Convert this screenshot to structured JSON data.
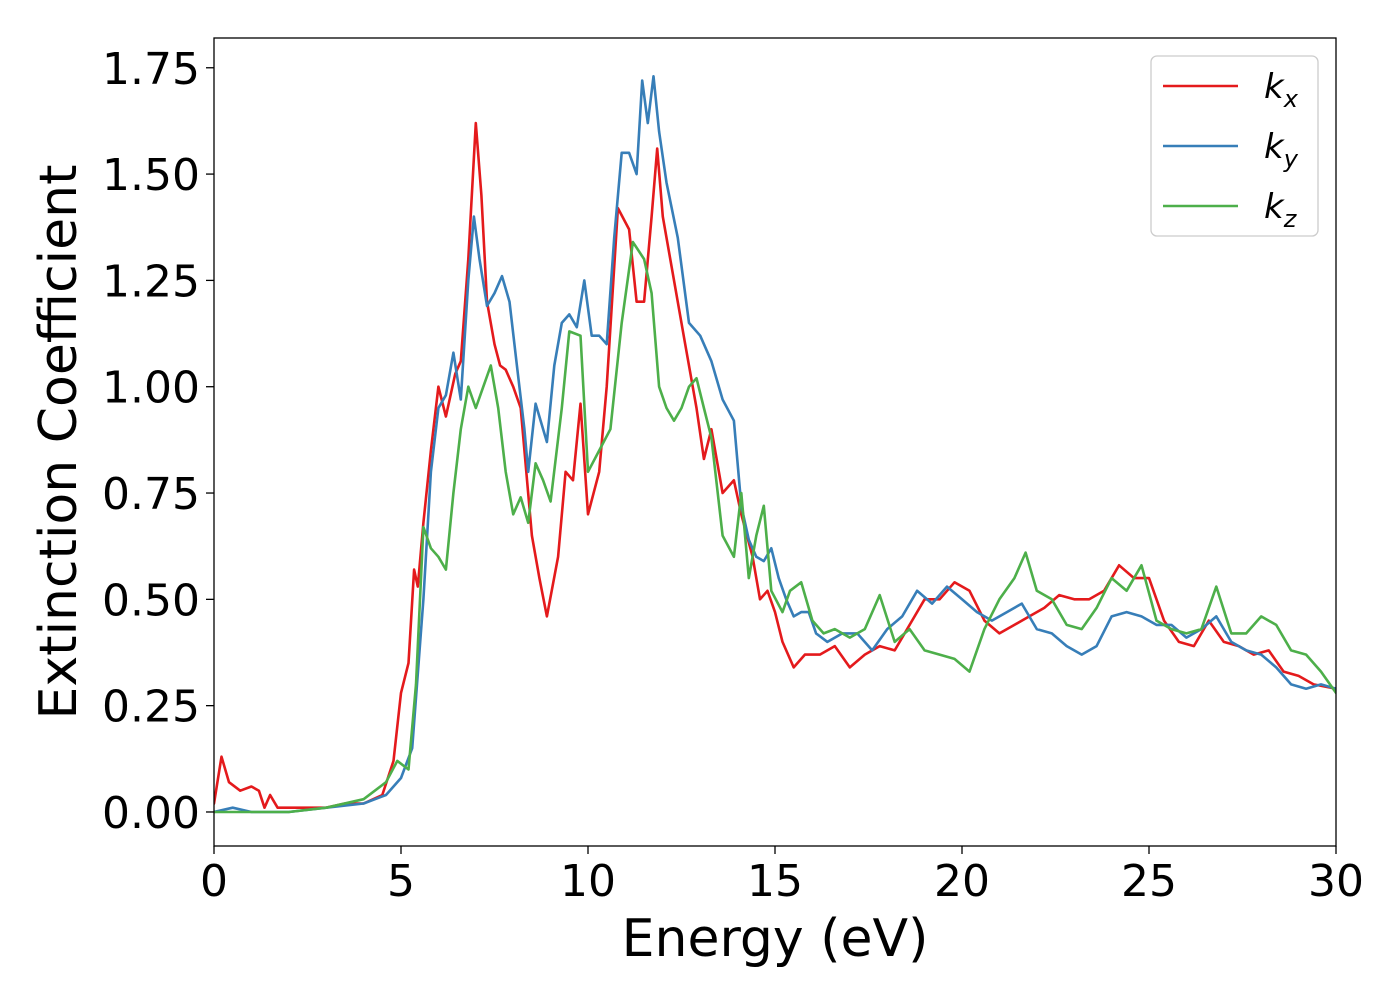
{
  "chart_data": {
    "type": "line",
    "title": "",
    "xlabel": "Energy (eV)",
    "ylabel": "Extinction Coefficient",
    "xlim": [
      0,
      30
    ],
    "ylim": [
      -0.08,
      1.82
    ],
    "xticks": [
      0,
      5,
      10,
      15,
      20,
      25,
      30
    ],
    "xtick_labels": [
      "0",
      "5",
      "10",
      "15",
      "20",
      "25",
      "30"
    ],
    "yticks": [
      0.0,
      0.25,
      0.5,
      0.75,
      1.0,
      1.25,
      1.5,
      1.75
    ],
    "ytick_labels": [
      "0.00",
      "0.25",
      "0.50",
      "0.75",
      "1.00",
      "1.25",
      "1.50",
      "1.75"
    ],
    "grid": false,
    "legend_position": "top-right",
    "series": [
      {
        "name": "k_x",
        "label_base": "k",
        "label_sub": "x",
        "color": "#e41a1c",
        "points": [
          [
            0,
            0.02
          ],
          [
            0.2,
            0.13
          ],
          [
            0.4,
            0.07
          ],
          [
            0.7,
            0.05
          ],
          [
            1.0,
            0.06
          ],
          [
            1.2,
            0.05
          ],
          [
            1.35,
            0.01
          ],
          [
            1.5,
            0.04
          ],
          [
            1.7,
            0.01
          ],
          [
            2,
            0.01
          ],
          [
            3,
            0.01
          ],
          [
            3.5,
            0.02
          ],
          [
            4,
            0.02
          ],
          [
            4.5,
            0.04
          ],
          [
            4.8,
            0.12
          ],
          [
            5.0,
            0.28
          ],
          [
            5.2,
            0.35
          ],
          [
            5.35,
            0.57
          ],
          [
            5.45,
            0.53
          ],
          [
            5.6,
            0.68
          ],
          [
            5.8,
            0.85
          ],
          [
            6.0,
            1.0
          ],
          [
            6.2,
            0.93
          ],
          [
            6.45,
            1.03
          ],
          [
            6.6,
            1.06
          ],
          [
            6.8,
            1.3
          ],
          [
            7.0,
            1.62
          ],
          [
            7.15,
            1.45
          ],
          [
            7.3,
            1.2
          ],
          [
            7.5,
            1.1
          ],
          [
            7.65,
            1.05
          ],
          [
            7.8,
            1.04
          ],
          [
            8.0,
            1.0
          ],
          [
            8.2,
            0.95
          ],
          [
            8.5,
            0.65
          ],
          [
            8.7,
            0.55
          ],
          [
            8.9,
            0.46
          ],
          [
            9.2,
            0.6
          ],
          [
            9.4,
            0.8
          ],
          [
            9.6,
            0.78
          ],
          [
            9.8,
            0.96
          ],
          [
            10.0,
            0.7
          ],
          [
            10.3,
            0.8
          ],
          [
            10.5,
            1.0
          ],
          [
            10.8,
            1.42
          ],
          [
            11.1,
            1.37
          ],
          [
            11.3,
            1.2
          ],
          [
            11.5,
            1.2
          ],
          [
            11.7,
            1.4
          ],
          [
            11.85,
            1.56
          ],
          [
            12.0,
            1.4
          ],
          [
            12.3,
            1.25
          ],
          [
            12.6,
            1.1
          ],
          [
            12.9,
            0.95
          ],
          [
            13.1,
            0.83
          ],
          [
            13.3,
            0.9
          ],
          [
            13.6,
            0.75
          ],
          [
            13.9,
            0.78
          ],
          [
            14.1,
            0.7
          ],
          [
            14.4,
            0.6
          ],
          [
            14.6,
            0.5
          ],
          [
            14.8,
            0.52
          ],
          [
            15.0,
            0.47
          ],
          [
            15.2,
            0.4
          ],
          [
            15.5,
            0.34
          ],
          [
            15.8,
            0.37
          ],
          [
            16.2,
            0.37
          ],
          [
            16.6,
            0.39
          ],
          [
            17.0,
            0.34
          ],
          [
            17.4,
            0.37
          ],
          [
            17.8,
            0.39
          ],
          [
            18.2,
            0.38
          ],
          [
            18.6,
            0.44
          ],
          [
            19.0,
            0.5
          ],
          [
            19.4,
            0.5
          ],
          [
            19.8,
            0.54
          ],
          [
            20.2,
            0.52
          ],
          [
            20.6,
            0.45
          ],
          [
            21.0,
            0.42
          ],
          [
            21.4,
            0.44
          ],
          [
            21.8,
            0.46
          ],
          [
            22.2,
            0.48
          ],
          [
            22.6,
            0.51
          ],
          [
            23.0,
            0.5
          ],
          [
            23.4,
            0.5
          ],
          [
            23.8,
            0.52
          ],
          [
            24.2,
            0.58
          ],
          [
            24.6,
            0.55
          ],
          [
            25.0,
            0.55
          ],
          [
            25.4,
            0.45
          ],
          [
            25.8,
            0.4
          ],
          [
            26.2,
            0.39
          ],
          [
            26.6,
            0.45
          ],
          [
            27.0,
            0.4
          ],
          [
            27.4,
            0.39
          ],
          [
            27.8,
            0.37
          ],
          [
            28.2,
            0.38
          ],
          [
            28.6,
            0.33
          ],
          [
            29.0,
            0.32
          ],
          [
            29.4,
            0.3
          ],
          [
            30.0,
            0.29
          ]
        ]
      },
      {
        "name": "k_y",
        "label_base": "k",
        "label_sub": "y",
        "color": "#377eb8",
        "points": [
          [
            0,
            0.0
          ],
          [
            0.5,
            0.01
          ],
          [
            1,
            0.0
          ],
          [
            2,
            0.0
          ],
          [
            3,
            0.01
          ],
          [
            4,
            0.02
          ],
          [
            4.6,
            0.04
          ],
          [
            5.0,
            0.08
          ],
          [
            5.3,
            0.15
          ],
          [
            5.6,
            0.5
          ],
          [
            5.8,
            0.8
          ],
          [
            6.0,
            0.95
          ],
          [
            6.2,
            0.98
          ],
          [
            6.4,
            1.08
          ],
          [
            6.6,
            0.97
          ],
          [
            6.8,
            1.25
          ],
          [
            6.95,
            1.4
          ],
          [
            7.1,
            1.3
          ],
          [
            7.3,
            1.19
          ],
          [
            7.5,
            1.22
          ],
          [
            7.7,
            1.26
          ],
          [
            7.9,
            1.2
          ],
          [
            8.1,
            1.05
          ],
          [
            8.3,
            0.9
          ],
          [
            8.4,
            0.8
          ],
          [
            8.6,
            0.96
          ],
          [
            8.9,
            0.87
          ],
          [
            9.1,
            1.05
          ],
          [
            9.3,
            1.15
          ],
          [
            9.5,
            1.17
          ],
          [
            9.7,
            1.14
          ],
          [
            9.9,
            1.25
          ],
          [
            10.1,
            1.12
          ],
          [
            10.3,
            1.12
          ],
          [
            10.5,
            1.1
          ],
          [
            10.7,
            1.35
          ],
          [
            10.9,
            1.55
          ],
          [
            11.1,
            1.55
          ],
          [
            11.3,
            1.5
          ],
          [
            11.45,
            1.72
          ],
          [
            11.6,
            1.62
          ],
          [
            11.75,
            1.73
          ],
          [
            11.9,
            1.6
          ],
          [
            12.1,
            1.48
          ],
          [
            12.4,
            1.35
          ],
          [
            12.7,
            1.15
          ],
          [
            13.0,
            1.12
          ],
          [
            13.3,
            1.06
          ],
          [
            13.6,
            0.97
          ],
          [
            13.9,
            0.92
          ],
          [
            14.1,
            0.72
          ],
          [
            14.3,
            0.64
          ],
          [
            14.5,
            0.6
          ],
          [
            14.7,
            0.59
          ],
          [
            14.9,
            0.62
          ],
          [
            15.1,
            0.55
          ],
          [
            15.3,
            0.5
          ],
          [
            15.5,
            0.46
          ],
          [
            15.7,
            0.47
          ],
          [
            15.9,
            0.47
          ],
          [
            16.1,
            0.42
          ],
          [
            16.4,
            0.4
          ],
          [
            16.8,
            0.42
          ],
          [
            17.2,
            0.42
          ],
          [
            17.6,
            0.38
          ],
          [
            18.0,
            0.43
          ],
          [
            18.4,
            0.46
          ],
          [
            18.8,
            0.52
          ],
          [
            19.2,
            0.49
          ],
          [
            19.6,
            0.53
          ],
          [
            20.0,
            0.5
          ],
          [
            20.4,
            0.47
          ],
          [
            20.8,
            0.45
          ],
          [
            21.2,
            0.47
          ],
          [
            21.6,
            0.49
          ],
          [
            22.0,
            0.43
          ],
          [
            22.4,
            0.42
          ],
          [
            22.8,
            0.39
          ],
          [
            23.2,
            0.37
          ],
          [
            23.6,
            0.39
          ],
          [
            24.0,
            0.46
          ],
          [
            24.4,
            0.47
          ],
          [
            24.8,
            0.46
          ],
          [
            25.2,
            0.44
          ],
          [
            25.6,
            0.44
          ],
          [
            26.0,
            0.41
          ],
          [
            26.4,
            0.43
          ],
          [
            26.8,
            0.46
          ],
          [
            27.2,
            0.4
          ],
          [
            27.6,
            0.38
          ],
          [
            28.0,
            0.37
          ],
          [
            28.4,
            0.34
          ],
          [
            28.8,
            0.3
          ],
          [
            29.2,
            0.29
          ],
          [
            29.6,
            0.3
          ],
          [
            30.0,
            0.29
          ]
        ]
      },
      {
        "name": "k_z",
        "label_base": "k",
        "label_sub": "z",
        "color": "#4daf4a",
        "points": [
          [
            0,
            0.0
          ],
          [
            0.5,
            0.0
          ],
          [
            1,
            0.0
          ],
          [
            2,
            0.0
          ],
          [
            3,
            0.01
          ],
          [
            4,
            0.03
          ],
          [
            4.6,
            0.07
          ],
          [
            4.9,
            0.12
          ],
          [
            5.2,
            0.1
          ],
          [
            5.4,
            0.3
          ],
          [
            5.6,
            0.67
          ],
          [
            5.8,
            0.62
          ],
          [
            6.0,
            0.6
          ],
          [
            6.2,
            0.57
          ],
          [
            6.4,
            0.75
          ],
          [
            6.6,
            0.9
          ],
          [
            6.8,
            1.0
          ],
          [
            7.0,
            0.95
          ],
          [
            7.2,
            1.0
          ],
          [
            7.4,
            1.05
          ],
          [
            7.6,
            0.95
          ],
          [
            7.8,
            0.8
          ],
          [
            8.0,
            0.7
          ],
          [
            8.2,
            0.74
          ],
          [
            8.4,
            0.68
          ],
          [
            8.6,
            0.82
          ],
          [
            8.8,
            0.78
          ],
          [
            9.0,
            0.73
          ],
          [
            9.3,
            0.95
          ],
          [
            9.5,
            1.13
          ],
          [
            9.8,
            1.12
          ],
          [
            10.0,
            0.8
          ],
          [
            10.3,
            0.85
          ],
          [
            10.6,
            0.9
          ],
          [
            10.9,
            1.15
          ],
          [
            11.2,
            1.34
          ],
          [
            11.5,
            1.3
          ],
          [
            11.7,
            1.22
          ],
          [
            11.9,
            1.0
          ],
          [
            12.1,
            0.95
          ],
          [
            12.3,
            0.92
          ],
          [
            12.5,
            0.95
          ],
          [
            12.7,
            1.0
          ],
          [
            12.9,
            1.02
          ],
          [
            13.1,
            0.95
          ],
          [
            13.3,
            0.88
          ],
          [
            13.6,
            0.65
          ],
          [
            13.9,
            0.6
          ],
          [
            14.1,
            0.75
          ],
          [
            14.3,
            0.55
          ],
          [
            14.5,
            0.65
          ],
          [
            14.7,
            0.72
          ],
          [
            14.9,
            0.52
          ],
          [
            15.2,
            0.47
          ],
          [
            15.4,
            0.52
          ],
          [
            15.7,
            0.54
          ],
          [
            16.0,
            0.45
          ],
          [
            16.3,
            0.42
          ],
          [
            16.6,
            0.43
          ],
          [
            17.0,
            0.41
          ],
          [
            17.4,
            0.43
          ],
          [
            17.8,
            0.51
          ],
          [
            18.2,
            0.4
          ],
          [
            18.6,
            0.43
          ],
          [
            19.0,
            0.38
          ],
          [
            19.4,
            0.37
          ],
          [
            19.8,
            0.36
          ],
          [
            20.2,
            0.33
          ],
          [
            20.6,
            0.43
          ],
          [
            21.0,
            0.5
          ],
          [
            21.4,
            0.55
          ],
          [
            21.7,
            0.61
          ],
          [
            22.0,
            0.52
          ],
          [
            22.4,
            0.5
          ],
          [
            22.8,
            0.44
          ],
          [
            23.2,
            0.43
          ],
          [
            23.6,
            0.48
          ],
          [
            24.0,
            0.55
          ],
          [
            24.4,
            0.52
          ],
          [
            24.8,
            0.58
          ],
          [
            25.2,
            0.45
          ],
          [
            25.6,
            0.43
          ],
          [
            26.0,
            0.42
          ],
          [
            26.4,
            0.43
          ],
          [
            26.8,
            0.53
          ],
          [
            27.2,
            0.42
          ],
          [
            27.6,
            0.42
          ],
          [
            28.0,
            0.46
          ],
          [
            28.4,
            0.44
          ],
          [
            28.8,
            0.38
          ],
          [
            29.2,
            0.37
          ],
          [
            29.6,
            0.33
          ],
          [
            30.0,
            0.28
          ]
        ]
      }
    ]
  }
}
